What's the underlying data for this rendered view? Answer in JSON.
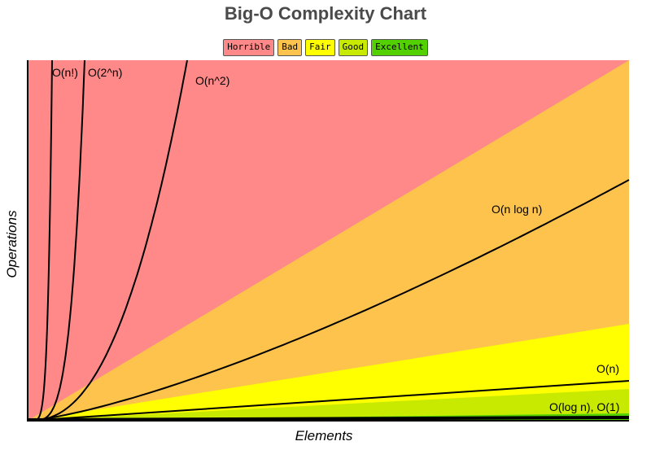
{
  "chart_data": {
    "type": "area",
    "title": "Big-O Complexity Chart",
    "xlabel": "Elements",
    "ylabel": "Operations",
    "legend_placement": "top-center",
    "grid": false,
    "regions": [
      {
        "name": "Horrible",
        "color": "#ff8989"
      },
      {
        "name": "Bad",
        "color": "#fec34c"
      },
      {
        "name": "Fair",
        "color": "#ffff00"
      },
      {
        "name": "Good",
        "color": "#c8ea00"
      },
      {
        "name": "Excellent",
        "color": "#53d000"
      }
    ],
    "curves": [
      {
        "label": "O(n!)"
      },
      {
        "label": "O(2^n)"
      },
      {
        "label": "O(n^2)"
      },
      {
        "label": "O(n log n)"
      },
      {
        "label": "O(n)"
      },
      {
        "label": "O(log n), O(1)"
      }
    ]
  }
}
